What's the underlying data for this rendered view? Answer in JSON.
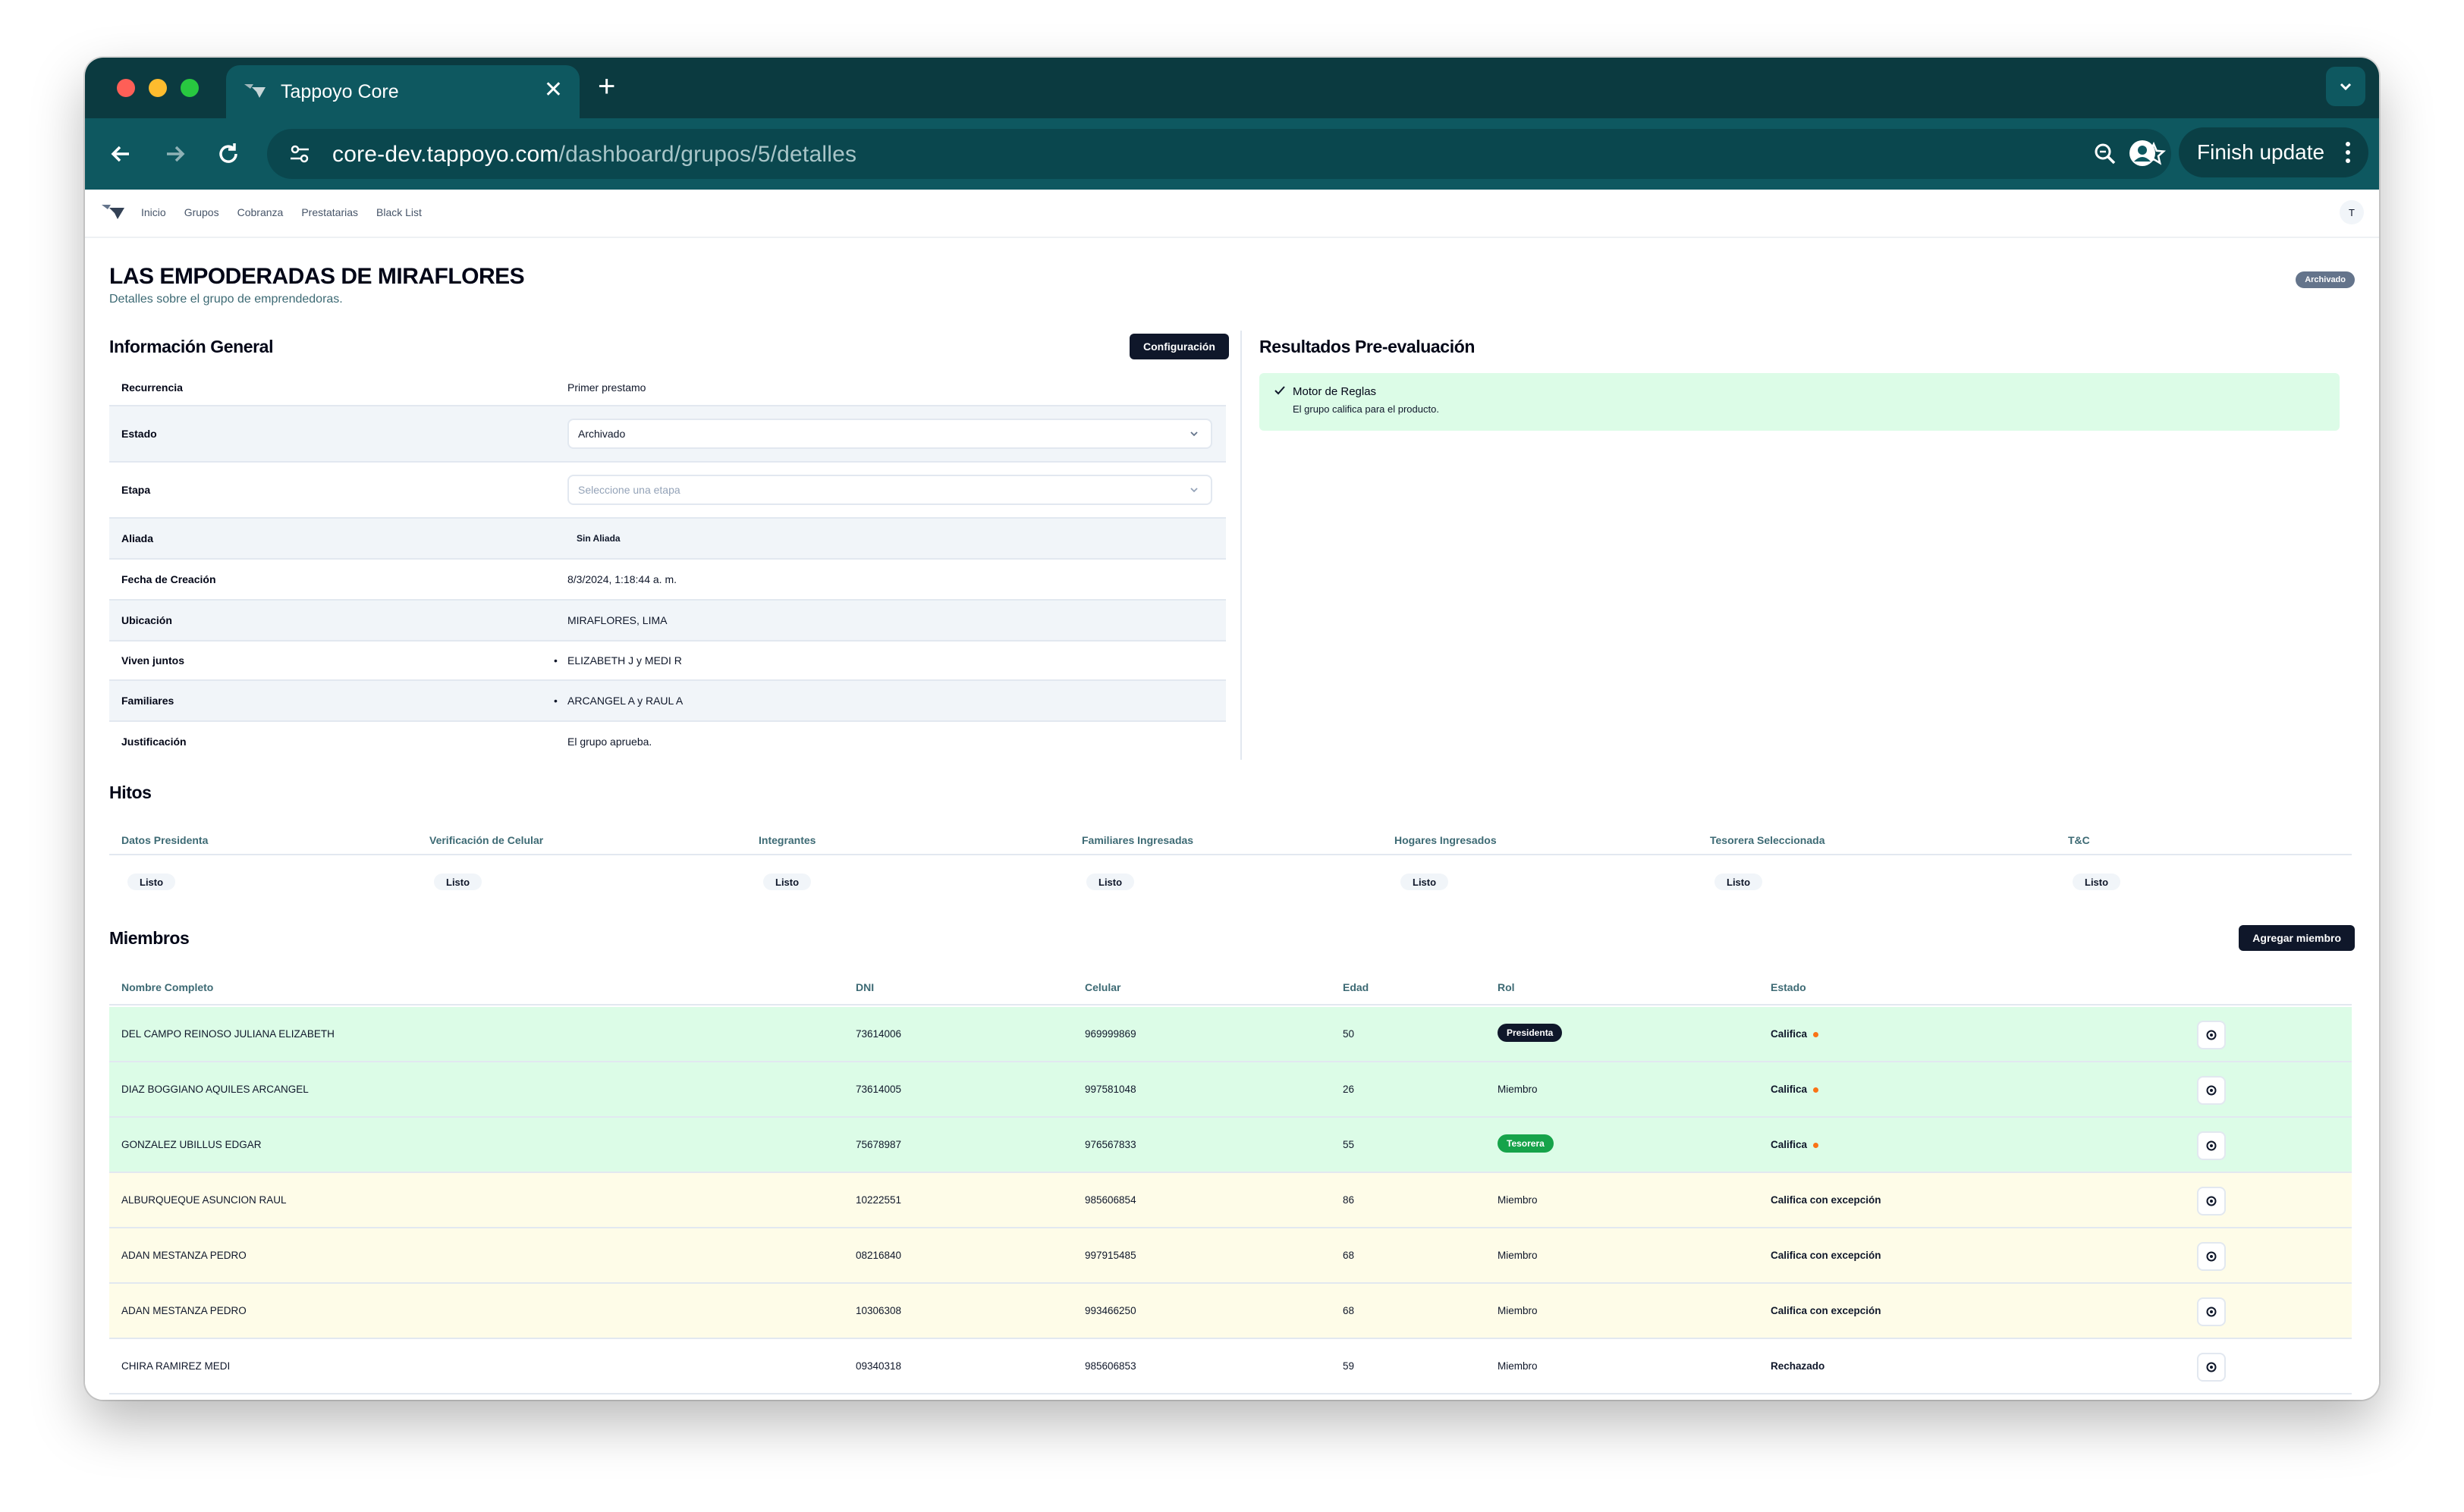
{
  "browser": {
    "tab_title": "Tappoyo Core",
    "url_host": "core-dev.tappoyo.com",
    "url_path": "/dashboard/grupos/5/detalles",
    "finish_update_label": "Finish update"
  },
  "nav": {
    "links": [
      "Inicio",
      "Grupos",
      "Cobranza",
      "Prestatarias",
      "Black List"
    ],
    "avatar_initial": "T"
  },
  "header": {
    "title": "LAS EMPODERADAS DE MIRAFLORES",
    "subtitle": "Detalles sobre el grupo de emprendedoras.",
    "status_badge": "Archivado"
  },
  "info_general": {
    "heading": "Información General",
    "config_button": "Configuración",
    "rows": {
      "recurrencia": {
        "label": "Recurrencia",
        "value": "Primer prestamo"
      },
      "estado": {
        "label": "Estado",
        "value": "Archivado"
      },
      "etapa": {
        "label": "Etapa",
        "placeholder": "Seleccione una etapa"
      },
      "aliada": {
        "label": "Aliada",
        "value": "Sin Aliada"
      },
      "fecha": {
        "label": "Fecha de Creación",
        "value": "8/3/2024, 1:18:44 a. m."
      },
      "ubicacion": {
        "label": "Ubicación",
        "value": "MIRAFLORES, LIMA"
      },
      "viven": {
        "label": "Viven juntos",
        "value": "ELIZABETH J y MEDI R"
      },
      "familiares": {
        "label": "Familiares",
        "value": "ARCANGEL A y RAUL A"
      },
      "justificacion": {
        "label": "Justificación",
        "value": "El grupo aprueba."
      }
    }
  },
  "pre_evaluacion": {
    "heading": "Resultados Pre-evaluación",
    "result_title": "Motor de Reglas",
    "result_desc": "El grupo califica para el producto."
  },
  "hitos": {
    "heading": "Hitos",
    "columns": [
      "Datos Presidenta",
      "Verificación de Celular",
      "Integrantes",
      "Familiares Ingresadas",
      "Hogares Ingresados",
      "Tesorera Seleccionada",
      "T&C"
    ],
    "statuses": [
      "Listo",
      "Listo",
      "Listo",
      "Listo",
      "Listo",
      "Listo",
      "Listo"
    ]
  },
  "miembros": {
    "heading": "Miembros",
    "add_button": "Agregar miembro",
    "columns": [
      "Nombre Completo",
      "DNI",
      "Celular",
      "Edad",
      "Rol",
      "Estado"
    ],
    "rows": [
      {
        "nombre": "DEL CAMPO REINOSO JULIANA ELIZABETH",
        "dni": "73614006",
        "celular": "969999869",
        "edad": "50",
        "rol": "Presidenta",
        "estado": "Califica"
      },
      {
        "nombre": "DIAZ BOGGIANO AQUILES ARCANGEL",
        "dni": "73614005",
        "celular": "997581048",
        "edad": "26",
        "rol": "Miembro",
        "estado": "Califica"
      },
      {
        "nombre": "GONZALEZ UBILLUS EDGAR",
        "dni": "75678987",
        "celular": "976567833",
        "edad": "55",
        "rol": "Tesorera",
        "estado": "Califica"
      },
      {
        "nombre": "ALBURQUEQUE ASUNCION RAUL",
        "dni": "10222551",
        "celular": "985606854",
        "edad": "86",
        "rol": "Miembro",
        "estado": "Califica con excepción"
      },
      {
        "nombre": "ADAN MESTANZA PEDRO",
        "dni": "08216840",
        "celular": "997915485",
        "edad": "68",
        "rol": "Miembro",
        "estado": "Califica con excepción"
      },
      {
        "nombre": "ADAN MESTANZA PEDRO",
        "dni": "10306308",
        "celular": "993466250",
        "edad": "68",
        "rol": "Miembro",
        "estado": "Califica con excepción"
      },
      {
        "nombre": "CHIRA RAMIREZ MEDI",
        "dni": "09340318",
        "celular": "985606853",
        "edad": "59",
        "rol": "Miembro",
        "estado": "Rechazado"
      }
    ]
  },
  "colors": {
    "chrome_dark": "#0b3a40",
    "chrome": "#0e5860",
    "row_green": "#dcfce7",
    "row_yellow": "#fefce8",
    "presidenta_pill": "#0f172a",
    "tesorera_pill": "#16a34a",
    "warning_dot": "#f97316"
  }
}
